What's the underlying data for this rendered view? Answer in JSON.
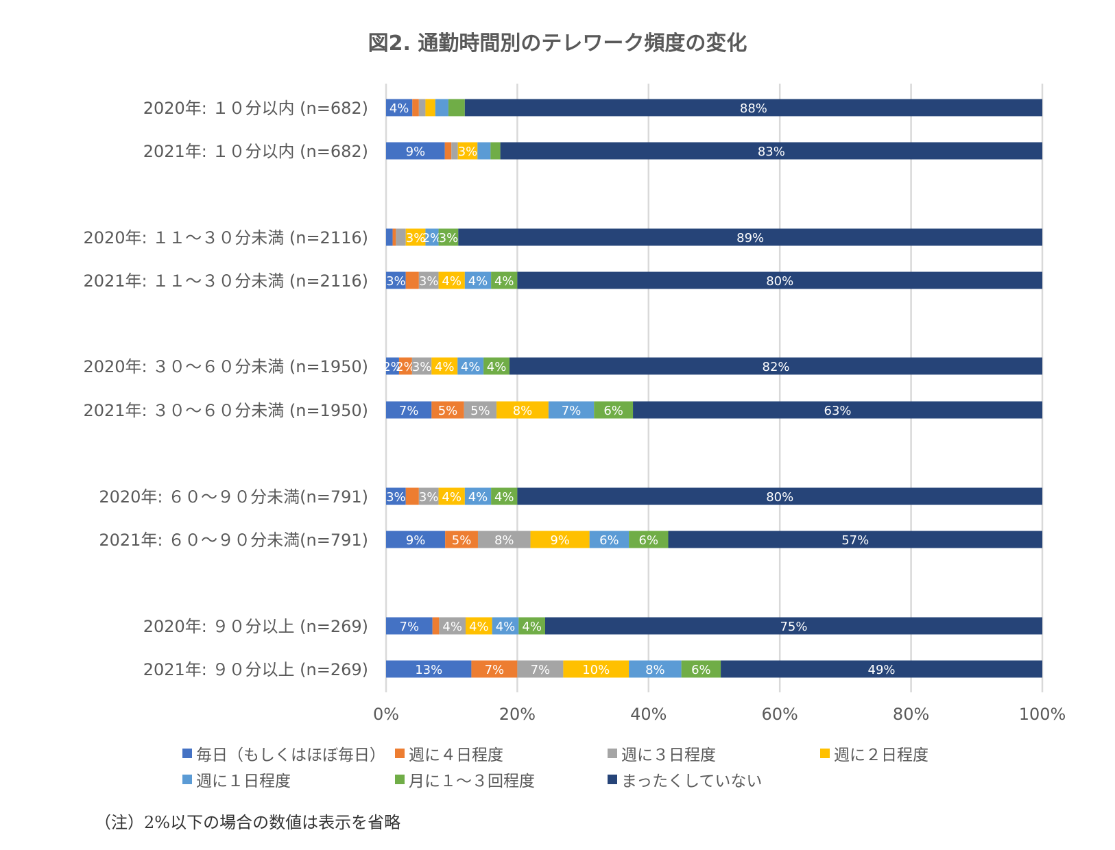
{
  "chart_data": {
    "type": "bar",
    "orientation": "horizontal",
    "stacked": "100%",
    "title": "図2. 通勤時間別のテレワーク頻度の変化",
    "categories": [
      "2020年: １０分以内 (n=682)",
      "2021年: １０分以内 (n=682)",
      "2020年: １１～３０分未満 (n=2116)",
      "2021年: １１～３０分未満 (n=2116)",
      "2020年: ３０～６０分未満 (n=1950)",
      "2021年: ３０～６０分未満 (n=1950)",
      "2020年: ６０～９０分未満(n=791)",
      "2021年: ６０～９０分未満(n=791)",
      "2020年: ９０分以上 (n=269)",
      "2021年: ９０分以上 (n=269)"
    ],
    "series": [
      {
        "name": "毎日（もしくはほぼ毎日）",
        "color": "#4472C4",
        "values": [
          4,
          9,
          1,
          3,
          2,
          7,
          3,
          9,
          7,
          13
        ]
      },
      {
        "name": "週に４日程度",
        "color": "#ED7D31",
        "values": [
          1,
          1,
          0.5,
          2,
          2,
          5,
          2,
          5,
          1,
          7
        ]
      },
      {
        "name": "週に３日程度",
        "color": "#A5A5A5",
        "values": [
          1,
          1,
          1.5,
          3,
          3,
          5,
          3,
          8,
          4,
          7
        ]
      },
      {
        "name": "週に２日程度",
        "color": "#FFC000",
        "values": [
          1.5,
          3,
          3,
          4,
          4,
          8,
          4,
          9,
          4,
          10
        ]
      },
      {
        "name": "週に１日程度",
        "color": "#5B9BD5",
        "values": [
          2,
          2,
          2,
          4,
          4,
          7,
          4,
          6,
          4,
          8
        ]
      },
      {
        "name": "月に１～３回程度",
        "color": "#70AD47",
        "values": [
          2.5,
          1.5,
          3,
          4,
          4,
          6,
          4,
          6,
          4,
          6
        ]
      },
      {
        "name": "まったくしていない",
        "color": "#264478",
        "values": [
          88,
          83,
          89,
          80,
          82,
          63,
          80,
          57,
          75,
          49
        ]
      }
    ],
    "data_labels": [
      [
        "4%",
        "",
        "",
        "",
        "",
        "",
        "88%"
      ],
      [
        "9%",
        "",
        "",
        "3%",
        "",
        "",
        "83%"
      ],
      [
        "",
        "",
        "",
        "3%",
        "2%",
        "3%",
        "89%"
      ],
      [
        "3%",
        "",
        "3%",
        "4%",
        "4%",
        "4%",
        "80%"
      ],
      [
        "2%",
        "2%",
        "3%",
        "4%",
        "4%",
        "4%",
        "82%"
      ],
      [
        "7%",
        "5%",
        "5%",
        "8%",
        "7%",
        "6%",
        "63%"
      ],
      [
        "3%",
        "",
        "3%",
        "4%",
        "4%",
        "4%",
        "80%"
      ],
      [
        "9%",
        "5%",
        "8%",
        "9%",
        "6%",
        "6%",
        "57%"
      ],
      [
        "7%",
        "",
        "4%",
        "4%",
        "4%",
        "4%",
        "75%"
      ],
      [
        "13%",
        "7%",
        "7%",
        "10%",
        "8%",
        "6%",
        "49%"
      ]
    ],
    "x_ticks": [
      "0%",
      "20%",
      "40%",
      "60%",
      "80%",
      "100%"
    ],
    "xlim": [
      0,
      100
    ],
    "grid": true,
    "legend_position": "bottom",
    "note": "（注）2%以下の場合の数値は表示を省略"
  }
}
